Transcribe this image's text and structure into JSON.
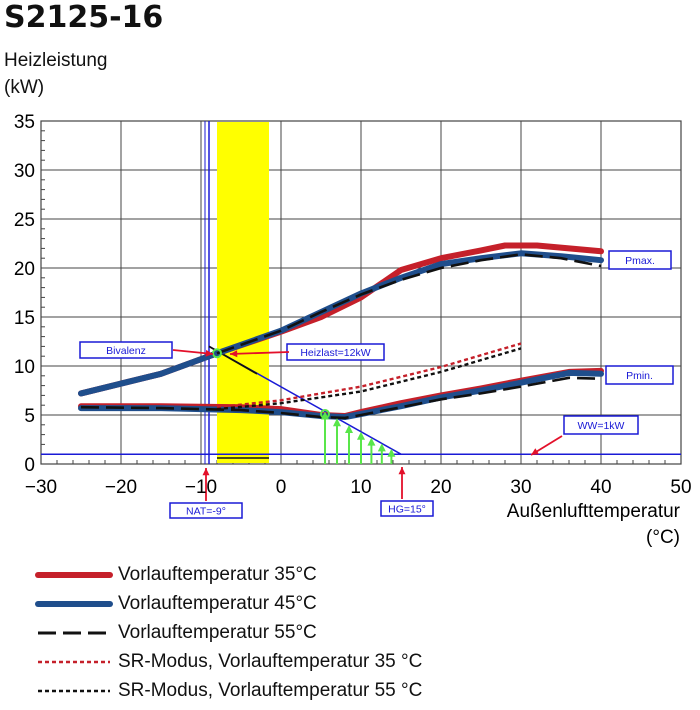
{
  "title": "S2125-16",
  "ylabel_line1": "Heizleistung",
  "ylabel_line2": "(kW)",
  "xlabel_line1": "Außenlufttemperatur",
  "xlabel_line2": "(°C)",
  "colors": {
    "red": "#c5202a",
    "blue": "#1f4e8c",
    "black": "#111111",
    "yellow": "#ffff00",
    "green": "#59e64a",
    "annot_blue": "#1a1ad6",
    "arrow_red": "#e3102a"
  },
  "annotations": {
    "bivalenz": "Bivalenz",
    "heizlast": "Heizlast=12kW",
    "pmax": "Pmax.",
    "pmin": "Pmin.",
    "ww": "WW=1kW",
    "nat": "NAT=-9°",
    "hg": "HG=15°"
  },
  "legend": [
    {
      "label": "Vorlauftemperatur 35°C",
      "style": "solid-red"
    },
    {
      "label": "Vorlauftemperatur 45°C",
      "style": "solid-blue"
    },
    {
      "label": "Vorlauftemperatur 55°C",
      "style": "dash-black"
    },
    {
      "label": "SR-Modus, Vorlauftemperatur 35 °C",
      "style": "dot-red"
    },
    {
      "label": "SR-Modus, Vorlauftemperatur 55 °C",
      "style": "dot-black"
    }
  ],
  "chart_data": {
    "type": "line",
    "title": "S2125-16",
    "xlabel": "Außenlufttemperatur (°C)",
    "ylabel": "Heizleistung (kW)",
    "xlim": [
      -30,
      50
    ],
    "ylim": [
      0,
      35
    ],
    "xticks": [
      -30,
      -20,
      -10,
      0,
      10,
      20,
      30,
      40,
      50
    ],
    "yticks": [
      0,
      5,
      10,
      15,
      20,
      25,
      30,
      35
    ],
    "grid": true,
    "series": [
      {
        "name": "Vorlauftemperatur 35°C",
        "group": "max",
        "x": [
          -25,
          -15,
          -8,
          0,
          5,
          10,
          15,
          20,
          25,
          28,
          32,
          36,
          40
        ],
        "y": [
          7.2,
          9.2,
          11.3,
          13.5,
          15.0,
          17.0,
          19.8,
          21.0,
          21.8,
          22.3,
          22.3,
          22.0,
          21.7
        ]
      },
      {
        "name": "Vorlauftemperatur 45°C",
        "group": "max",
        "x": [
          -25,
          -15,
          -8,
          0,
          5,
          10,
          15,
          20,
          25,
          30,
          35,
          40
        ],
        "y": [
          7.2,
          9.2,
          11.3,
          13.6,
          15.5,
          17.4,
          19.0,
          20.4,
          21.0,
          21.5,
          21.2,
          20.8
        ]
      },
      {
        "name": "Vorlauftemperatur 55°C",
        "group": "max",
        "x": [
          -8,
          0,
          5,
          10,
          15,
          20,
          25,
          30,
          35,
          40
        ],
        "y": [
          11.3,
          13.6,
          15.5,
          17.3,
          18.8,
          20.0,
          20.8,
          21.4,
          21.0,
          20.2
        ]
      },
      {
        "name": "Vorlauftemperatur 35°C",
        "group": "min",
        "x": [
          -25,
          -15,
          -5,
          0,
          5,
          8,
          10,
          15,
          20,
          25,
          30,
          36,
          40
        ],
        "y": [
          5.9,
          5.9,
          5.8,
          5.6,
          5.0,
          4.9,
          5.3,
          6.2,
          7.0,
          7.7,
          8.5,
          9.4,
          9.5
        ]
      },
      {
        "name": "Vorlauftemperatur 45°C",
        "group": "min",
        "x": [
          -25,
          -15,
          -5,
          0,
          5,
          8,
          10,
          15,
          20,
          25,
          30,
          36,
          40
        ],
        "y": [
          5.7,
          5.7,
          5.5,
          5.3,
          4.9,
          4.8,
          5.1,
          5.9,
          6.8,
          7.5,
          8.3,
          9.3,
          9.2
        ]
      },
      {
        "name": "Vorlauftemperatur 55°C",
        "group": "min",
        "x": [
          -25,
          -15,
          -5,
          0,
          5,
          8,
          10,
          15,
          20,
          25,
          30,
          36,
          40
        ],
        "y": [
          5.8,
          5.7,
          5.5,
          5.2,
          4.8,
          4.7,
          5.0,
          5.8,
          6.6,
          7.2,
          7.9,
          8.8,
          8.7
        ]
      },
      {
        "name": "SR-Modus, Vorlauftemperatur 35 °C",
        "x": [
          -8,
          0,
          5,
          10,
          15,
          20,
          25,
          30
        ],
        "y": [
          5.8,
          6.5,
          7.2,
          7.9,
          8.9,
          9.9,
          11.1,
          12.3
        ]
      },
      {
        "name": "SR-Modus, Vorlauftemperatur 55 °C",
        "x": [
          -8,
          0,
          5,
          10,
          15,
          20,
          25,
          30
        ],
        "y": [
          5.6,
          6.2,
          6.8,
          7.4,
          8.4,
          9.4,
          10.6,
          11.8
        ]
      },
      {
        "name": "Heizlast",
        "x": [
          -9,
          15
        ],
        "y": [
          12,
          1
        ]
      }
    ],
    "markers": {
      "nat_x": -9,
      "hg_x": 15,
      "ww_y": 1,
      "bivalence_band_x": [
        -8,
        -1.5
      ],
      "bivalence_point": [
        -8,
        11.3
      ],
      "min_point": [
        5.5,
        5.1
      ]
    }
  }
}
